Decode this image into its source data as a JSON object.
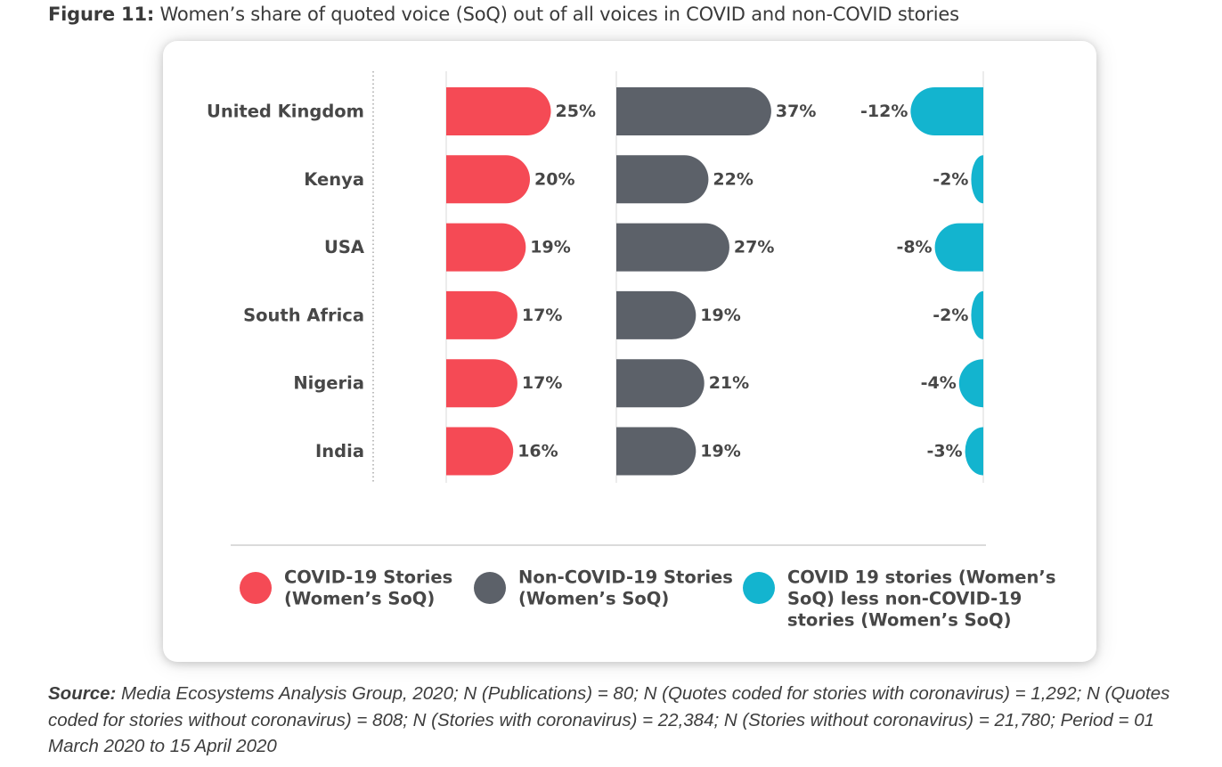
{
  "figure": {
    "title_lead": "Figure 11:",
    "title_text": " Women’s share of quoted voice (SoQ) out of all voices in COVID and non-COVID stories",
    "source_lead": "Source:",
    "source_text": " Media Ecosystems Analysis Group, 2020; N (Publications) = 80; N (Quotes coded for stories with coronavirus) = 1,292; N (Quotes coded for stories without coronavirus) = 808; N (Stories with coronavirus) = 22,384; N (Stories without coronavirus) = 21,780; Period = 01 March 2020 to 15 April 2020"
  },
  "colors": {
    "covid": "#f54a55",
    "non_covid": "#5c6169",
    "difference": "#13b4cf",
    "label": "#474747",
    "divider": "#cfcfcf"
  },
  "chart_data": {
    "type": "bar",
    "orientation": "horizontal",
    "categories": [
      "United Kingdom",
      "Kenya",
      "USA",
      "South Africa",
      "Nigeria",
      "India"
    ],
    "series": [
      {
        "name": "COVID-19 Stories (Women’s SoQ)",
        "color": "#f54a55",
        "values": [
          25,
          20,
          19,
          17,
          17,
          16
        ],
        "labels": [
          "25%",
          "20%",
          "19%",
          "17%",
          "17%",
          "16%"
        ]
      },
      {
        "name": "Non-COVID-19 Stories (Women’s SoQ)",
        "color": "#5c6169",
        "values": [
          37,
          22,
          27,
          19,
          21,
          19
        ],
        "labels": [
          "37%",
          "22%",
          "27%",
          "19%",
          "21%",
          "19%"
        ]
      },
      {
        "name": "COVID 19 stories (Women’s SoQ) less non-COVID-19 stories (Women’s SoQ)",
        "color": "#13b4cf",
        "values": [
          -12,
          -2,
          -8,
          -2,
          -4,
          -3
        ],
        "labels": [
          "-12%",
          "-2%",
          "-8%",
          "-2%",
          "-4%",
          "-3%"
        ]
      }
    ],
    "legend": {
      "position": "bottom",
      "entries": [
        {
          "lines": [
            "COVID-19 Stories",
            "(Women’s SoQ)"
          ],
          "color": "#f54a55"
        },
        {
          "lines": [
            "Non-COVID-19 Stories",
            "(Women’s SoQ)"
          ],
          "color": "#5c6169"
        },
        {
          "lines": [
            "COVID 19 stories (Women’s",
            "SoQ) less non-COVID-19",
            "stories (Women’s SoQ)"
          ],
          "color": "#13b4cf"
        }
      ]
    },
    "grid": false,
    "axis_ticks": false
  }
}
